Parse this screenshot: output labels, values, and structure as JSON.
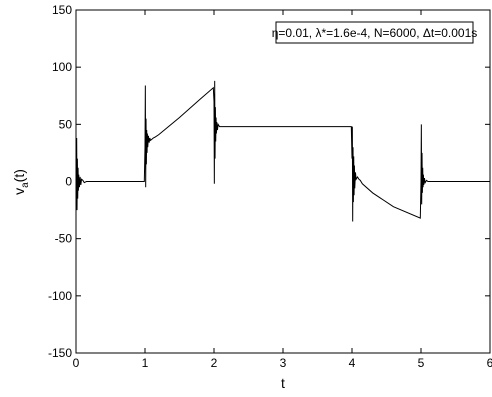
{
  "chart_data": {
    "type": "line",
    "xlabel": "t",
    "ylabel": "v_a(t)",
    "xlim": [
      0,
      6
    ],
    "ylim": [
      -150,
      150
    ],
    "x_ticks": [
      0,
      1,
      2,
      3,
      4,
      5,
      6
    ],
    "y_ticks": [
      150,
      100,
      50,
      0,
      -50,
      -100,
      -150
    ],
    "grid": false,
    "legend_box": {
      "text": "η=0.01, λ*=1.6e-4, N=6000, Δt=0.001s",
      "placement": "top-right"
    },
    "series": [
      {
        "color": "#000000",
        "x": [
          0,
          0.01,
          0.015,
          0.02,
          0.025,
          0.03,
          0.035,
          0.04,
          0.05,
          0.06,
          0.07,
          0.08,
          0.1,
          0.12,
          0.15,
          0.2,
          0.3,
          0.5,
          0.7,
          0.9,
          0.99,
          1.0,
          1.005,
          1.01,
          1.015,
          1.02,
          1.025,
          1.03,
          1.035,
          1.04,
          1.05,
          1.06,
          1.07,
          1.08,
          1.1,
          1.12,
          1.15,
          1.2,
          1.5,
          1.8,
          1.99,
          2.0,
          2.005,
          2.01,
          2.015,
          2.02,
          2.025,
          2.03,
          2.035,
          2.04,
          2.05,
          2.06,
          2.08,
          2.1,
          2.15,
          2.3,
          2.6,
          3.0,
          3.5,
          3.99,
          4.0,
          4.005,
          4.01,
          4.015,
          4.02,
          4.025,
          4.03,
          4.035,
          4.04,
          4.05,
          4.06,
          4.08,
          4.1,
          4.12,
          4.15,
          4.3,
          4.6,
          4.99,
          5.0,
          5.005,
          5.01,
          5.015,
          5.02,
          5.025,
          5.03,
          5.035,
          5.04,
          5.05,
          5.06,
          5.08,
          5.1,
          5.12,
          5.15,
          5.2,
          5.5,
          5.8,
          6.0
        ],
        "y": [
          0,
          38,
          -25,
          20,
          -15,
          12,
          -8,
          6,
          -5,
          4,
          -3,
          2,
          1,
          -1,
          0,
          0,
          0,
          0,
          0,
          0,
          0,
          30,
          84,
          -5,
          55,
          15,
          45,
          25,
          42,
          30,
          40,
          34,
          38,
          36,
          37,
          38,
          39,
          41,
          56,
          72,
          82,
          70,
          -2,
          88,
          20,
          65,
          35,
          56,
          42,
          52,
          45,
          50,
          48,
          48,
          48,
          48,
          48,
          48,
          48,
          48,
          20,
          48,
          -35,
          30,
          -18,
          22,
          -12,
          14,
          -6,
          8,
          2,
          4,
          2,
          1,
          -2,
          -10,
          -22,
          -32,
          0,
          50,
          -20,
          25,
          -10,
          12,
          -5,
          6,
          -3,
          3,
          -1,
          1,
          0,
          0,
          0,
          0,
          0,
          0,
          0
        ]
      }
    ]
  }
}
